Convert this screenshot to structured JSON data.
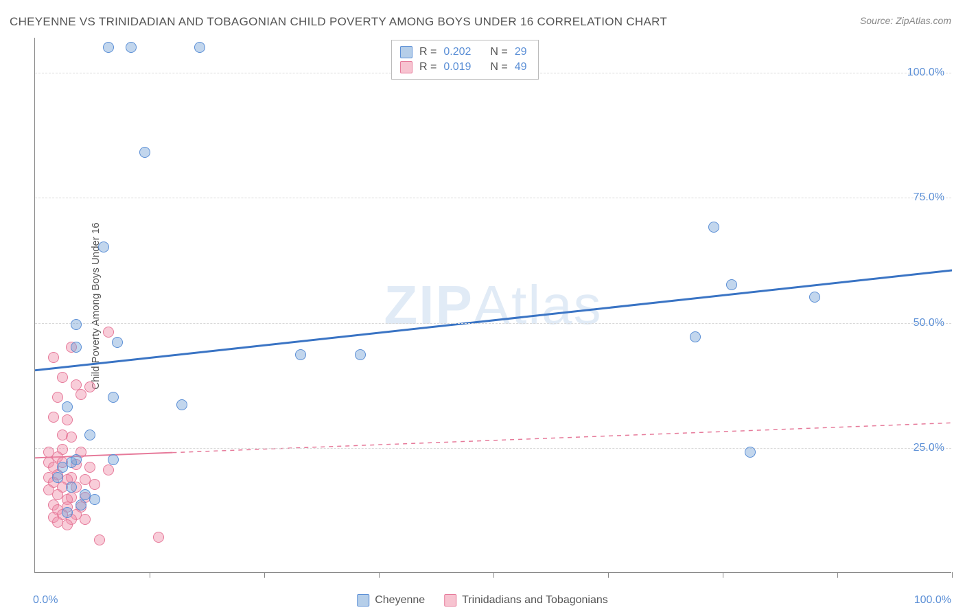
{
  "title": "CHEYENNE VS TRINIDADIAN AND TOBAGONIAN CHILD POVERTY AMONG BOYS UNDER 16 CORRELATION CHART",
  "source": "Source: ZipAtlas.com",
  "ylabel": "Child Poverty Among Boys Under 16",
  "watermark_a": "ZIP",
  "watermark_b": "Atlas",
  "chart": {
    "type": "scatter",
    "xlim": [
      0,
      100
    ],
    "ylim": [
      0,
      107
    ],
    "xtick_labels": [
      "0.0%",
      "100.0%"
    ],
    "ytick_positions": [
      25,
      50,
      75,
      100
    ],
    "ytick_labels": [
      "25.0%",
      "50.0%",
      "75.0%",
      "100.0%"
    ],
    "xtick_minor": [
      12.5,
      25,
      37.5,
      50,
      62.5,
      75,
      87.5,
      100
    ],
    "background_color": "#ffffff",
    "grid_color": "#d8d8d8",
    "axis_color": "#888888",
    "label_color": "#5b8fd6",
    "point_radius": 8,
    "series": {
      "cheyenne": {
        "label": "Cheyenne",
        "color_fill": "rgba(120,165,215,0.45)",
        "color_stroke": "#5b8fd6",
        "R": "0.202",
        "N": "29",
        "trend": {
          "y0": 40.5,
          "y1": 60.5,
          "solid_until": 100,
          "stroke": "#3a74c4",
          "stroke_width": 3
        },
        "points": [
          [
            8,
            105
          ],
          [
            10.5,
            105
          ],
          [
            18,
            105
          ],
          [
            12,
            84
          ],
          [
            7.5,
            65
          ],
          [
            74,
            69
          ],
          [
            76,
            57.5
          ],
          [
            85,
            55
          ],
          [
            4.5,
            49.5
          ],
          [
            9,
            46
          ],
          [
            4.5,
            45
          ],
          [
            72,
            47
          ],
          [
            29,
            43.5
          ],
          [
            35.5,
            43.5
          ],
          [
            8.5,
            35
          ],
          [
            16,
            33.5
          ],
          [
            3.5,
            33
          ],
          [
            6,
            27.5
          ],
          [
            78,
            24
          ],
          [
            4,
            22
          ],
          [
            4.5,
            22.5
          ],
          [
            8.5,
            22.5
          ],
          [
            3,
            21
          ],
          [
            2.5,
            19
          ],
          [
            4,
            17
          ],
          [
            5.5,
            15.5
          ],
          [
            5,
            13.5
          ],
          [
            6.5,
            14.5
          ],
          [
            3.5,
            12
          ]
        ]
      },
      "trinidad": {
        "label": "Trinidadians and Tobagonians",
        "color_fill": "rgba(240,145,170,0.45)",
        "color_stroke": "#e67a9a",
        "R": "0.019",
        "N": "49",
        "trend": {
          "y0": 23,
          "y1": 30,
          "solid_until": 15,
          "stroke": "#e67a9a",
          "stroke_width": 2
        },
        "points": [
          [
            8,
            48
          ],
          [
            4,
            45
          ],
          [
            2,
            43
          ],
          [
            3,
            39
          ],
          [
            4.5,
            37.5
          ],
          [
            6,
            37
          ],
          [
            2.5,
            35
          ],
          [
            5,
            35.5
          ],
          [
            2,
            31
          ],
          [
            3.5,
            30.5
          ],
          [
            3,
            27.5
          ],
          [
            4,
            27
          ],
          [
            1.5,
            24
          ],
          [
            3,
            24.5
          ],
          [
            5,
            24
          ],
          [
            2.5,
            23
          ],
          [
            1.5,
            22
          ],
          [
            3,
            22
          ],
          [
            4.5,
            21.5
          ],
          [
            6,
            21
          ],
          [
            8,
            20.5
          ],
          [
            2,
            21
          ],
          [
            1.5,
            19
          ],
          [
            2.5,
            19.5
          ],
          [
            4,
            19
          ],
          [
            3.5,
            18.5
          ],
          [
            5.5,
            18.5
          ],
          [
            2,
            18
          ],
          [
            3,
            17
          ],
          [
            4.5,
            17
          ],
          [
            1.5,
            16.5
          ],
          [
            6.5,
            17.5
          ],
          [
            2.5,
            15.5
          ],
          [
            4,
            15
          ],
          [
            3.5,
            14.5
          ],
          [
            5.5,
            15
          ],
          [
            2,
            13.5
          ],
          [
            3.5,
            13
          ],
          [
            2.5,
            12.5
          ],
          [
            5,
            13
          ],
          [
            3,
            11.5
          ],
          [
            2,
            11
          ],
          [
            4.5,
            11.5
          ],
          [
            4,
            10.5
          ],
          [
            2.5,
            10
          ],
          [
            5.5,
            10.5
          ],
          [
            3.5,
            9.5
          ],
          [
            7,
            6.5
          ],
          [
            13.5,
            7
          ]
        ]
      }
    }
  },
  "legend_top": {
    "r_label": "R =",
    "n_label": "N ="
  }
}
